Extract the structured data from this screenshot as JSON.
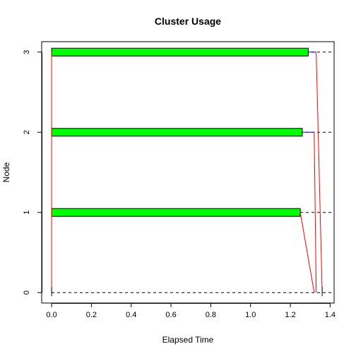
{
  "chart_data": {
    "type": "bar",
    "title": "Cluster Usage",
    "xlabel": "Elapsed Time",
    "ylabel": "Node",
    "xlim": [
      -0.05,
      1.42
    ],
    "ylim": [
      -0.13,
      3.13
    ],
    "x_ticks": [
      "0.0",
      "0.2",
      "0.4",
      "0.6",
      "0.8",
      "1.0",
      "1.2",
      "1.4"
    ],
    "y_ticks": [
      "0",
      "1",
      "2",
      "3"
    ],
    "node_lines": [
      0,
      1,
      2,
      3
    ],
    "bars": [
      {
        "node": 3,
        "start": 0.0,
        "end": 1.29,
        "tail_end": 1.33
      },
      {
        "node": 2,
        "start": 0.0,
        "end": 1.26,
        "tail_end": 1.32
      },
      {
        "node": 1,
        "start": 0.0,
        "end": 1.25,
        "tail_end": 1.25
      }
    ],
    "messages": [
      {
        "x0": 0.0,
        "y0": 0,
        "x1": 0.0,
        "y1": 3
      },
      {
        "x0": 1.25,
        "y0": 1,
        "x1": 1.32,
        "y1": 0
      },
      {
        "x0": 1.32,
        "y0": 2,
        "x1": 1.33,
        "y1": 0
      },
      {
        "x0": 1.33,
        "y0": 3,
        "x1": 1.36,
        "y1": 0
      }
    ],
    "end_markers": [
      0.0,
      1.36
    ],
    "grid": false,
    "colors": {
      "bar_fill": "#00ff00",
      "bar_stroke": "#000000",
      "message": "#ff0000",
      "tail": "#0000ff",
      "node_line": "#000000"
    }
  }
}
